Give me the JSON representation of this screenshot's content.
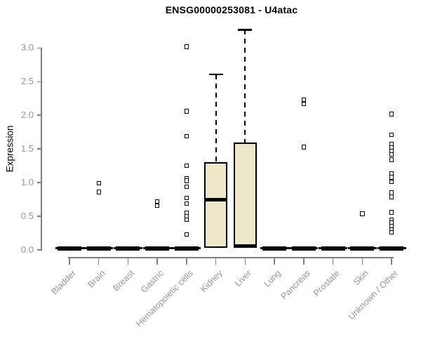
{
  "chart_data": {
    "type": "boxplot",
    "title": "ENSG00000253081 - U4atac",
    "ylabel": "Expression",
    "xlabel": "",
    "ylim": [
      0,
      3.3
    ],
    "grid": false,
    "legend_position": "none",
    "marker": "open-square",
    "colors": {
      "box_fill": "#ece7c9",
      "box_stroke": "#000000",
      "median": "#000000",
      "axis": "#7f7f7f",
      "text": "#969696",
      "title": "#000000",
      "background": "#ffffff"
    },
    "yticks": [
      {
        "value": 0.0,
        "label": "0.0"
      },
      {
        "value": 0.5,
        "label": "0.5"
      },
      {
        "value": 1.0,
        "label": "1.0"
      },
      {
        "value": 1.5,
        "label": "1.5"
      },
      {
        "value": 2.0,
        "label": "2.0"
      },
      {
        "value": 2.5,
        "label": "2.5"
      },
      {
        "value": 3.0,
        "label": "3.0"
      }
    ],
    "categories": [
      "Bladder",
      "Brain",
      "Breast",
      "Gastric",
      "Hematopoietic cells",
      "Kidney",
      "Liver",
      "Lung",
      "Pancreas",
      "Prostate",
      "Skin",
      "Unknown / Other"
    ],
    "series": [
      {
        "category": "Bladder",
        "q1": 0,
        "median": 0,
        "q3": 0,
        "whisker_low": 0,
        "whisker_high": 0,
        "outliers": []
      },
      {
        "category": "Brain",
        "q1": 0,
        "median": 0,
        "q3": 0,
        "whisker_low": 0,
        "whisker_high": 0,
        "outliers": [
          0.99,
          0.86
        ]
      },
      {
        "category": "Breast",
        "q1": 0,
        "median": 0,
        "q3": 0,
        "whisker_low": 0,
        "whisker_high": 0,
        "outliers": []
      },
      {
        "category": "Gastric",
        "q1": 0,
        "median": 0,
        "q3": 0,
        "whisker_low": 0,
        "whisker_high": 0,
        "outliers": [
          0.72,
          0.66
        ]
      },
      {
        "category": "Hematopoietic cells",
        "q1": 0,
        "median": 0,
        "q3": 0,
        "whisker_low": 0,
        "whisker_high": 0,
        "outliers": [
          3.02,
          2.06,
          1.69,
          1.25,
          1.06,
          1.03,
          0.94,
          0.77,
          0.69,
          0.55,
          0.5,
          0.45,
          0.23
        ]
      },
      {
        "category": "Kidney",
        "q1": 0.03,
        "median": 0.75,
        "q3": 1.3,
        "whisker_low": 0.03,
        "whisker_high": 2.61,
        "outliers": []
      },
      {
        "category": "Liver",
        "q1": 0.03,
        "median": 0.04,
        "q3": 1.6,
        "whisker_low": 0.03,
        "whisker_high": 3.27,
        "outliers": []
      },
      {
        "category": "Lung",
        "q1": 0,
        "median": 0,
        "q3": 0,
        "whisker_low": 0,
        "whisker_high": 0,
        "outliers": []
      },
      {
        "category": "Pancreas",
        "q1": 0,
        "median": 0,
        "q3": 0,
        "whisker_low": 0,
        "whisker_high": 0,
        "outliers": [
          2.23,
          2.17,
          1.53
        ]
      },
      {
        "category": "Prostate",
        "q1": 0,
        "median": 0,
        "q3": 0,
        "whisker_low": 0,
        "whisker_high": 0,
        "outliers": []
      },
      {
        "category": "Skin",
        "q1": 0,
        "median": 0,
        "q3": 0,
        "whisker_low": 0,
        "whisker_high": 0,
        "outliers": [
          0.54
        ]
      },
      {
        "category": "Unknown / Other",
        "q1": 0,
        "median": 0,
        "q3": 0,
        "whisker_low": 0,
        "whisker_high": 0,
        "outliers": [
          2.02,
          1.71,
          1.57,
          1.52,
          1.47,
          1.42,
          1.34,
          1.13,
          1.08,
          1.01,
          0.85,
          0.79,
          0.56,
          0.45,
          0.4,
          0.35,
          0.3,
          0.26
        ]
      }
    ]
  }
}
